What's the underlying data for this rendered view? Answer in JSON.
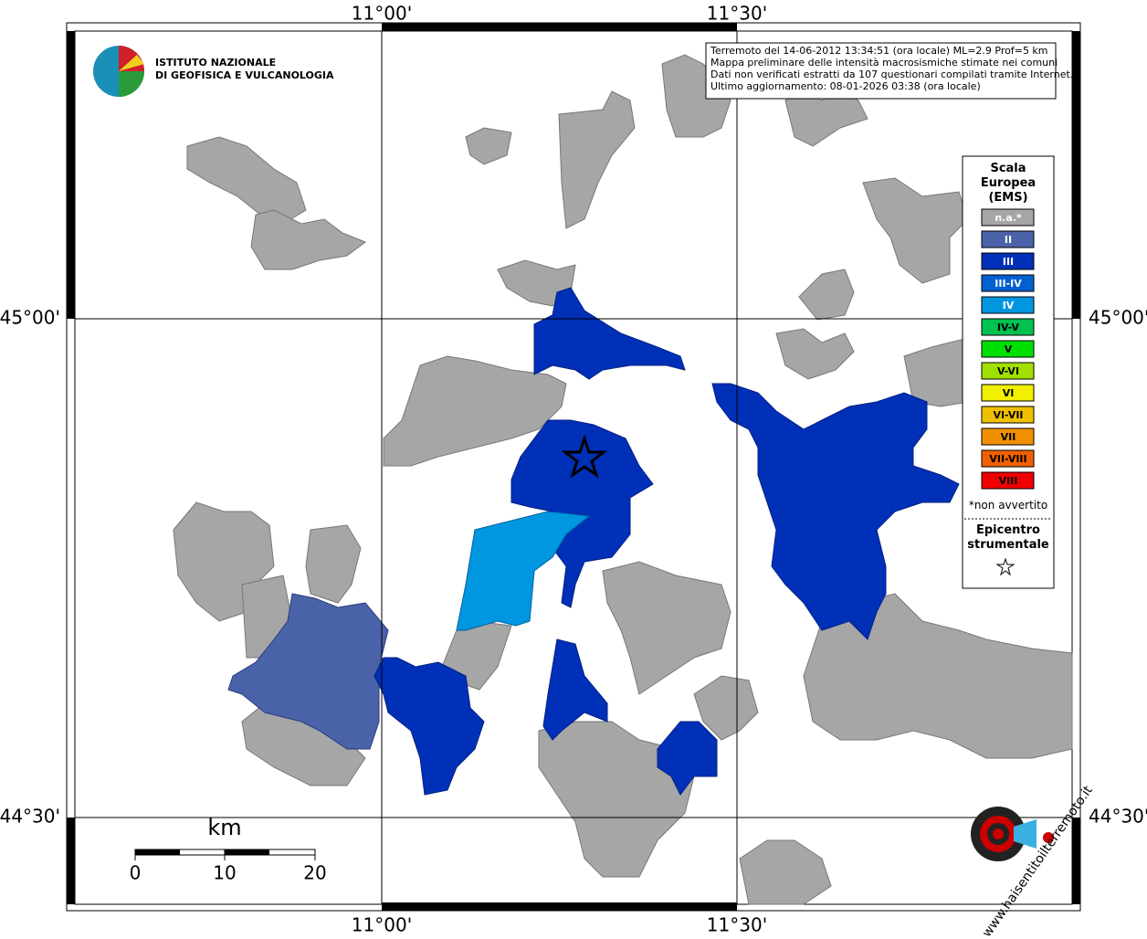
{
  "graticule": {
    "longitudes": [
      "11°00'",
      "11°30'"
    ],
    "latitudes": [
      "45°00'",
      "44°30'"
    ]
  },
  "logo": {
    "line1": "ISTITUTO NAZIONALE",
    "line2": "DI GEOFISICA E VULCANOLOGIA",
    "website": "www.haisentitoilterremoto.it"
  },
  "info": [
    "Terremoto del 14-06-2012 13:34:51 (ora locale) ML=2.9 Prof=5 km",
    "Mappa preliminare delle intensità macrosismiche stimate nei comuni",
    "Dati non verificati estratti da 107 questionari compilati tramite Internet.",
    "Ultimo aggiornamento: 08-01-2026 03:38 (ora locale)"
  ],
  "legend": {
    "title": [
      "Scala",
      "Europea",
      "(EMS)"
    ],
    "items": [
      {
        "label": "n.a.*",
        "color": "#a6a6a6"
      },
      {
        "label": "II",
        "color": "#4a62a8"
      },
      {
        "label": "III",
        "color": "#0030b8"
      },
      {
        "label": "III-IV",
        "color": "#0060d0"
      },
      {
        "label": "IV",
        "color": "#0096e0"
      },
      {
        "label": "IV-V",
        "color": "#00c050"
      },
      {
        "label": "V",
        "color": "#00e000"
      },
      {
        "label": "V-VI",
        "color": "#a0e000"
      },
      {
        "label": "VI",
        "color": "#f0f000"
      },
      {
        "label": "VI-VII",
        "color": "#f0c000"
      },
      {
        "label": "VII",
        "color": "#f09000"
      },
      {
        "label": "VII-VIII",
        "color": "#f06000"
      },
      {
        "label": "VIII",
        "color": "#f00000"
      }
    ],
    "note": "*non avvertito",
    "epicenter": [
      "Epicentro",
      "strumentale"
    ]
  },
  "scale_bar": {
    "unit": "km",
    "labels": [
      "0",
      "10",
      "20"
    ]
  }
}
